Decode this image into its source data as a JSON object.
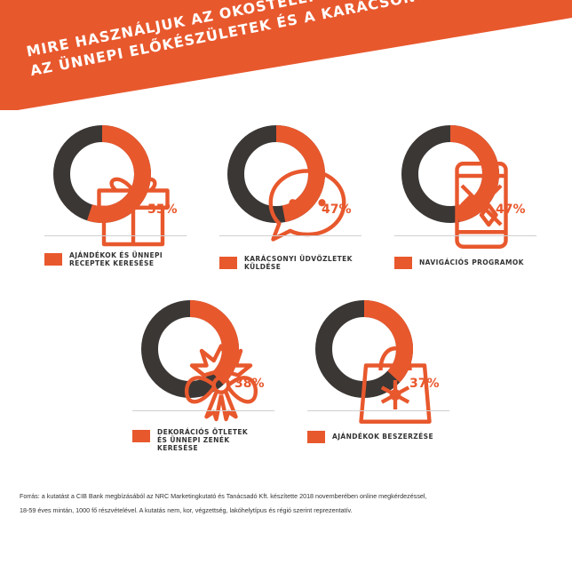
{
  "title": {
    "line1": "MIRE HASZNÁLJUK AZ OKOSTELEFONT",
    "line2": "AZ ÜNNEPI ELŐKÉSZÜLETEK ÉS A KARÁCSONY IDEJE ALATT?"
  },
  "colors": {
    "accent": "#e8582d",
    "dark": "#3b3735",
    "banner": "#e8582d"
  },
  "chart_data": {
    "type": "pie",
    "variant": "donut",
    "title": "MIRE HASZNÁLJUK AZ OKOSTELEFONT AZ ÜNNEPI ELŐKÉSZÜLETEK ÉS A KARÁCSONY IDEJE ALATT?",
    "unit": "%",
    "categories": [
      "AJÁNDÉKOK ÉS ÜNNEPI RECEPTEK KERESÉSE",
      "KARÁCSONYI ÜDVÖZLETEK KÜLDÉSE",
      "NAVIGÁCIÓS PROGRAMOK",
      "DEKORÁCIÓS ÖTLETEK ÉS ÜNNEPI ZENÉK KERESÉSE",
      "AJÁNDÉKOK BESZERZÉSE"
    ],
    "values": [
      55,
      47,
      47,
      38,
      37
    ]
  },
  "items": [
    {
      "label_lines": [
        "AJÁNDÉKOK ÉS ÜNNEPI",
        "RECEPTEK KERESÉSE"
      ],
      "pct_label": "55%",
      "icon": "gift-icon"
    },
    {
      "label_lines": [
        "KARÁCSONYI ÜDVÖZLETEK",
        "KÜLDÉSE"
      ],
      "pct_label": "47%",
      "icon": "chat-bubble-icon"
    },
    {
      "label_lines": [
        "NAVIGÁCIÓS PROGRAMOK"
      ],
      "pct_label": "47%",
      "icon": "smartphone-map-icon"
    },
    {
      "label_lines": [
        "DEKORÁCIÓS ÖTLETEK",
        "ÉS ÜNNEPI ZENÉK",
        "KERESÉSE"
      ],
      "pct_label": "38%",
      "icon": "christmas-bow-icon"
    },
    {
      "label_lines": [
        "AJÁNDÉKOK BESZERZÉSE"
      ],
      "pct_label": "37%",
      "icon": "shopping-bag-icon"
    }
  ],
  "source": {
    "line1": "Forrás: a kutatást a CIB Bank megbízásából az NRC Marketingkutató és Tanácsadó Kft. készítette 2018 novemberében online megkérdezéssel,",
    "line2": "18-59 éves mintán, 1000 fő részvételével. A kutatás nem, kor, végzettség, lakóhelytípus és régió szerint reprezentatív."
  }
}
